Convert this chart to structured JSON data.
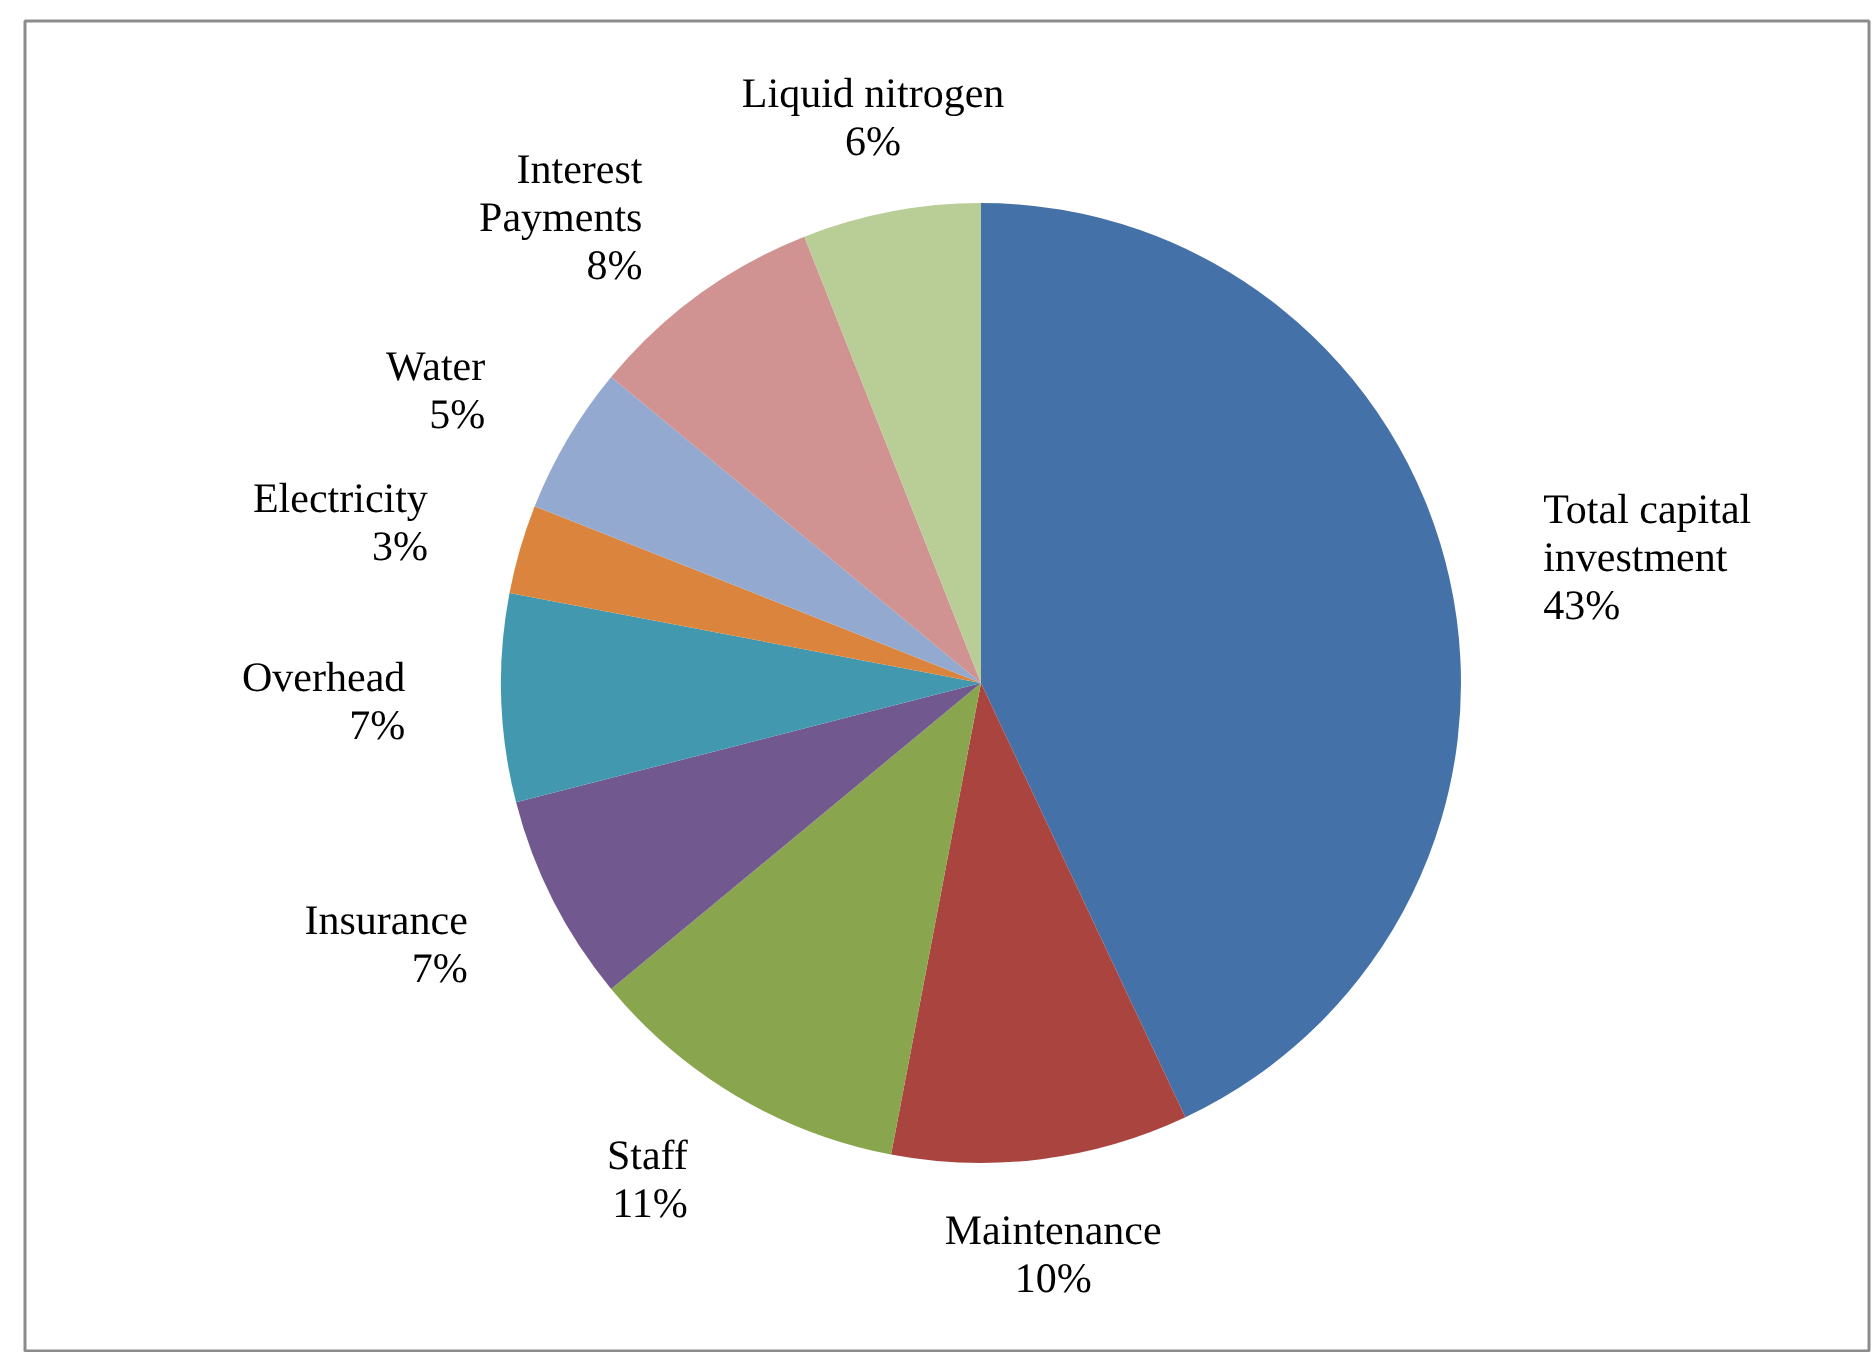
{
  "chart_data": {
    "type": "pie",
    "categories": [
      "Total capital investment",
      "Maintenance",
      "Staff",
      "Insurance",
      "Overhead",
      "Electricity",
      "Water",
      "Interest Payments",
      "Liquid nitrogen"
    ],
    "values": [
      43,
      10,
      11,
      7,
      7,
      3,
      5,
      8,
      6
    ],
    "colors": [
      "#4571a9",
      "#a9443f",
      "#89a54e",
      "#71588f",
      "#4198af",
      "#db843d",
      "#93a9cf",
      "#d19392",
      "#b9cd96"
    ],
    "value_labels": [
      "43%",
      "10%",
      "11%",
      "7%",
      "7%",
      "3%",
      "5%",
      "8%",
      "6%"
    ]
  }
}
